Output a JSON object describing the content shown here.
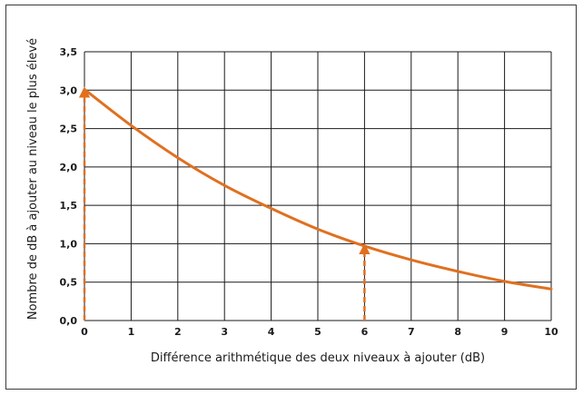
{
  "chart_data": {
    "type": "line",
    "xlabel": "Différence arithmétique des deux niveaux à ajouter (dB)",
    "ylabel": "Nombre de dB à ajouter au niveau le plus élevé",
    "xlim": [
      0,
      10
    ],
    "ylim": [
      0,
      3.5
    ],
    "x_ticks": [
      "0",
      "1",
      "2",
      "3",
      "4",
      "5",
      "6",
      "7",
      "8",
      "9",
      "10"
    ],
    "y_ticks": [
      "0,0",
      "0,5",
      "1,0",
      "1,5",
      "2,0",
      "2,5",
      "3,0",
      "3,5"
    ],
    "grid": true,
    "line_color": "#e07020",
    "series": [
      {
        "x": [
          0,
          1,
          2,
          3,
          4,
          5,
          6,
          7,
          8,
          9,
          10
        ],
        "values": [
          3.01,
          2.54,
          2.12,
          1.76,
          1.46,
          1.19,
          0.97,
          0.79,
          0.64,
          0.51,
          0.41
        ]
      }
    ],
    "annotations": [
      {
        "type": "dashed-arrow",
        "x": 0,
        "y_from": 0,
        "y_to": 3.01
      },
      {
        "type": "dashed-arrow",
        "x": 6,
        "y_from": 0,
        "y_to": 0.97
      }
    ]
  }
}
